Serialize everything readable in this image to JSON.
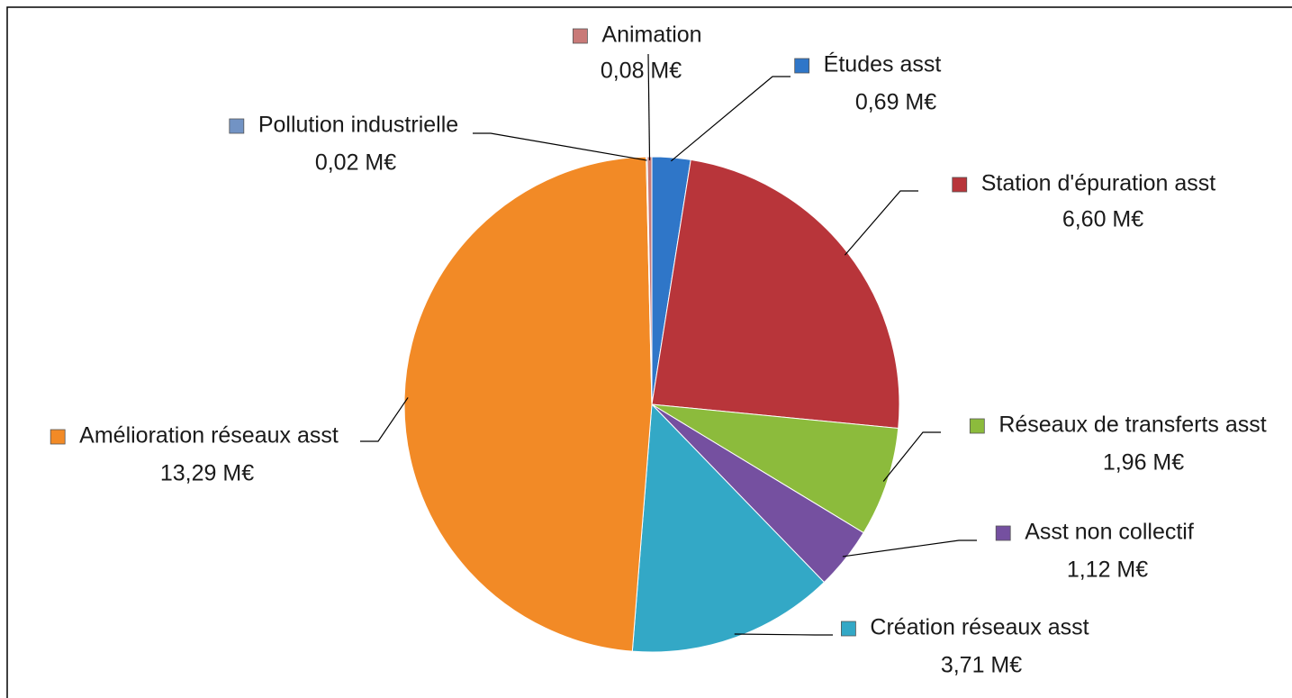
{
  "chart_data": {
    "type": "pie",
    "categories": [
      "Études asst",
      "Station d'épuration asst",
      "Réseaux de transferts asst",
      "Asst non collectif",
      "Création réseaux asst",
      "Amélioration réseaux asst",
      "Pollution industrielle",
      "Animation"
    ],
    "values": [
      0.69,
      6.6,
      1.96,
      1.12,
      3.71,
      13.29,
      0.02,
      0.08
    ],
    "value_labels": [
      "0,69 M€",
      "6,60 M€",
      "1,96 M€",
      "1,12 M€",
      "3,71 M€",
      "13,29 M€",
      "0,02 M€",
      "0,08 M€"
    ],
    "colors": [
      "#2f76c8",
      "#b8353a",
      "#8cbb3c",
      "#7550a0",
      "#33a8c6",
      "#f28a26",
      "#7293c4",
      "#c97a78"
    ]
  }
}
